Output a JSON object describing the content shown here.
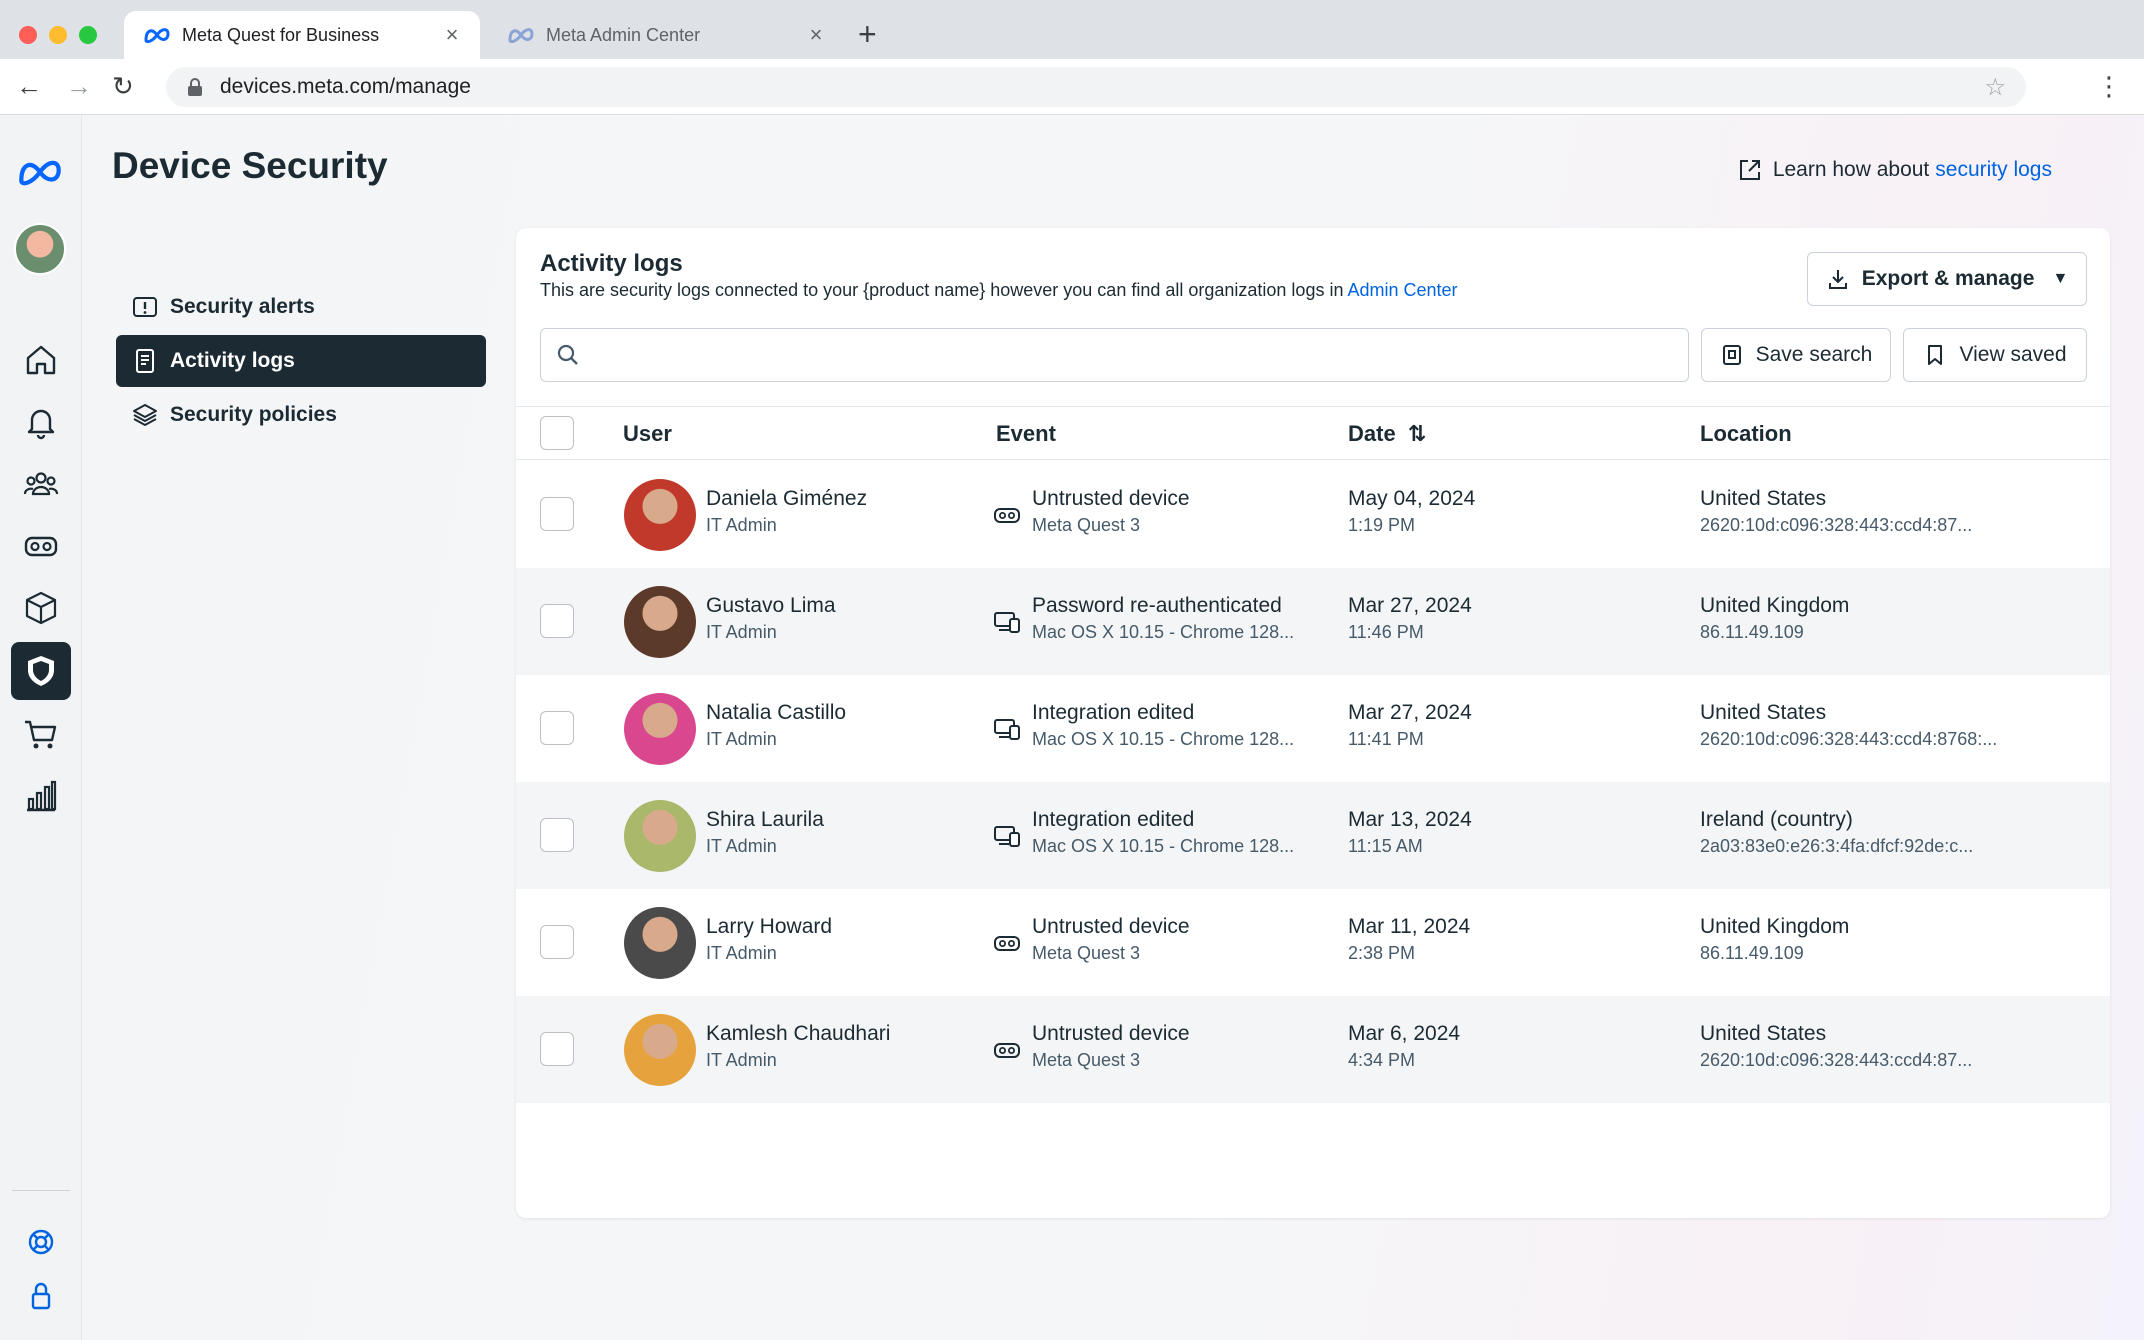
{
  "browser": {
    "tabs": [
      {
        "title": "Meta Quest for Business",
        "active": true
      },
      {
        "title": "Meta Admin Center",
        "active": false
      }
    ],
    "url": "devices.meta.com/manage"
  },
  "page": {
    "title": "Device Security",
    "learn": {
      "prefix": "Learn how about",
      "link": "security logs"
    }
  },
  "subnav": {
    "items": [
      {
        "label": "Security alerts",
        "icon": "alert-icon",
        "active": false
      },
      {
        "label": "Activity logs",
        "icon": "document-icon",
        "active": true
      },
      {
        "label": "Security policies",
        "icon": "layers-icon",
        "active": false
      }
    ]
  },
  "rail": {
    "items": [
      "home-icon",
      "bell-icon",
      "people-icon",
      "headset-icon",
      "cube-icon",
      "shield-icon",
      "cart-icon",
      "chart-icon",
      "help-icon",
      "lock-icon"
    ],
    "active": "shield-icon"
  },
  "card": {
    "title": "Activity logs",
    "description": "This are security logs connected to your {product name} however you can find all organization logs in",
    "description_link": "Admin Center",
    "export_label": "Export & manage",
    "save_search_label": "Save search",
    "view_saved_label": "View saved",
    "search_placeholder": ""
  },
  "table": {
    "columns": [
      "User",
      "Event",
      "Date",
      "Location"
    ],
    "rows": [
      {
        "name": "Daniela Giménez",
        "role": "IT Admin",
        "event": "Untrusted device",
        "detail": "Meta Quest 3",
        "event_icon": "headset-icon",
        "date": "May 04, 2024",
        "time": "1:19 PM",
        "location": "United States",
        "ip": "2620:10d:c096:328:443:ccd4:87...",
        "avatar_color": "#c0392b"
      },
      {
        "name": "Gustavo Lima",
        "role": "IT Admin",
        "event": "Password re-authenticated",
        "detail": "Mac OS X 10.15 - Chrome 128...",
        "event_icon": "devices-icon",
        "date": "Mar 27, 2024",
        "time": "11:46 PM",
        "location": "United Kingdom",
        "ip": "86.11.49.109",
        "avatar_color": "#5b3a2a"
      },
      {
        "name": "Natalia Castillo",
        "role": "IT Admin",
        "event": "Integration edited",
        "detail": "Mac OS X 10.15 - Chrome 128...",
        "event_icon": "devices-icon",
        "date": "Mar 27, 2024",
        "time": "11:41 PM",
        "location": "United States",
        "ip": "2620:10d:c096:328:443:ccd4:8768:...",
        "avatar_color": "#d9488f"
      },
      {
        "name": "Shira Laurila",
        "role": "IT Admin",
        "event": "Integration edited",
        "detail": "Mac OS X 10.15 - Chrome 128...",
        "event_icon": "devices-icon",
        "date": "Mar 13, 2024",
        "time": "11:15 AM",
        "location": "Ireland (country)",
        "ip": "2a03:83e0:e26:3:4fa:dfcf:92de:c...",
        "avatar_color": "#a9b86a"
      },
      {
        "name": "Larry Howard",
        "role": "IT Admin",
        "event": "Untrusted device",
        "detail": "Meta Quest 3",
        "event_icon": "headset-icon",
        "date": "Mar 11, 2024",
        "time": "2:38 PM",
        "location": "United Kingdom",
        "ip": "86.11.49.109",
        "avatar_color": "#4a4a4a"
      },
      {
        "name": "Kamlesh Chaudhari",
        "role": "IT Admin",
        "event": "Untrusted device",
        "detail": "Meta Quest 3",
        "event_icon": "headset-icon",
        "date": "Mar 6, 2024",
        "time": "4:34 PM",
        "location": "United States",
        "ip": "2620:10d:c096:328:443:ccd4:87...",
        "avatar_color": "#e6a23c"
      }
    ]
  }
}
